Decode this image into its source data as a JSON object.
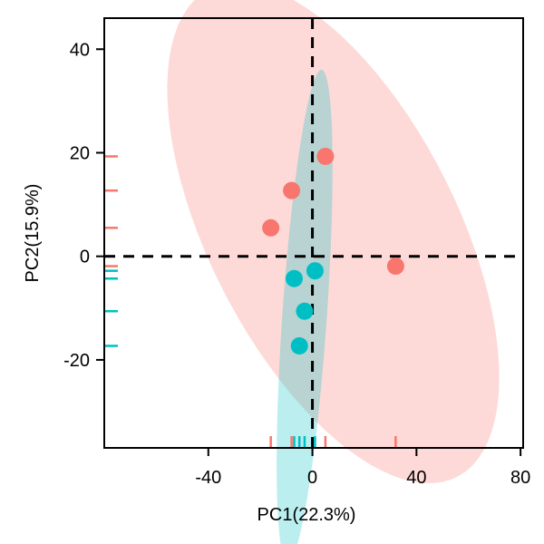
{
  "chart_data": {
    "type": "scatter",
    "xlabel": "PC1(22.3%)",
    "ylabel": "PC2(15.9%)",
    "xlim": [
      -80,
      81
    ],
    "ylim": [
      -37,
      46
    ],
    "xticks": [
      -40,
      0,
      40,
      80
    ],
    "yticks": [
      -20,
      0,
      20,
      40
    ],
    "xtick_labels": [
      "-40",
      "0",
      "40",
      "80"
    ],
    "ytick_labels": [
      "-20",
      "0",
      "20",
      "40"
    ],
    "grid": false,
    "reference_lines": {
      "x": 0,
      "y": 0,
      "style": "dashed"
    },
    "rug": true,
    "series": [
      {
        "color": "#F8766D",
        "ellipse_fill": "#F8766D",
        "points": [
          {
            "x": 5,
            "y": 19.3
          },
          {
            "x": -8,
            "y": 12.7
          },
          {
            "x": -16,
            "y": 5.5
          },
          {
            "x": 32,
            "y": -1.9
          }
        ],
        "ellipse": {
          "cx": 8,
          "cy": 4.5,
          "rx": 72,
          "ry": 35,
          "angle_deg": -32
        }
      },
      {
        "color": "#00BFC4",
        "ellipse_fill": "#00BFC4",
        "points": [
          {
            "x": 1,
            "y": -2.8
          },
          {
            "x": -7,
            "y": -4.3
          },
          {
            "x": -3,
            "y": -10.6
          },
          {
            "x": -5,
            "y": -17.3
          }
        ],
        "ellipse": {
          "cx": -3,
          "cy": -11.5,
          "rx": 48,
          "ry": 8.5,
          "angle_deg": 82
        }
      }
    ]
  }
}
